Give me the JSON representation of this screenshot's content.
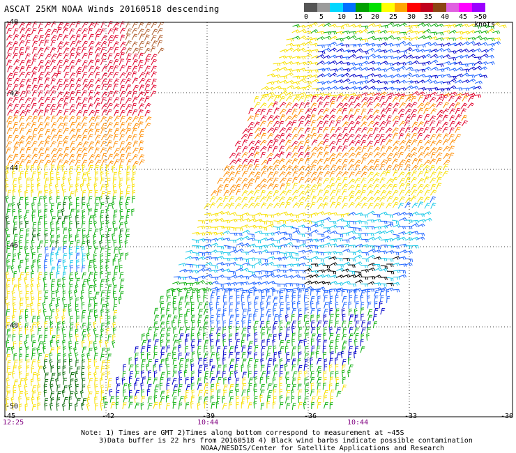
{
  "title": "ASCAT 25KM NOAA Winds 20160518 descending",
  "legend": {
    "labels": [
      "0",
      "5",
      "10",
      "15",
      "20",
      "25",
      "30",
      "35",
      "40",
      "45",
      ">50 knots"
    ],
    "colors": [
      "#555555",
      "#9b9b9b",
      "#00d7ff",
      "#0070ff",
      "#00a000",
      "#00e000",
      "#ffff00",
      "#ffa500",
      "#ff0000",
      "#c0001e",
      "#8b4513",
      "#e060e0",
      "#ff00ff",
      "#9b00ff"
    ]
  },
  "lat_labels": [
    "-40",
    "-42",
    "-44",
    "-46",
    "-48",
    "-50"
  ],
  "lon_labels": [
    "-45",
    "-42",
    "-39",
    "-36",
    "-33",
    "-30"
  ],
  "times": [
    "12:25",
    "10:44",
    "10:44"
  ],
  "notes": [
    "Note: 1) Times are GMT 2)Times along bottom correspond to measurement at ~45S",
    "3)Data buffer is 22 hrs from 20160518 4) Black wind barbs indicate possible contamination",
    "NOAA/NESDIS/Center for Satellite Applications and Research"
  ],
  "barb_colors": {
    "red": "#e0002a",
    "brown": "#b06030",
    "orange": "#ff8c00",
    "yellow": "#f8e000",
    "green": "#10b010",
    "darkgreen": "#006400",
    "blue": "#0000c8",
    "midblue": "#1e64ff",
    "cyan": "#18c8e8",
    "black": "#000000"
  }
}
